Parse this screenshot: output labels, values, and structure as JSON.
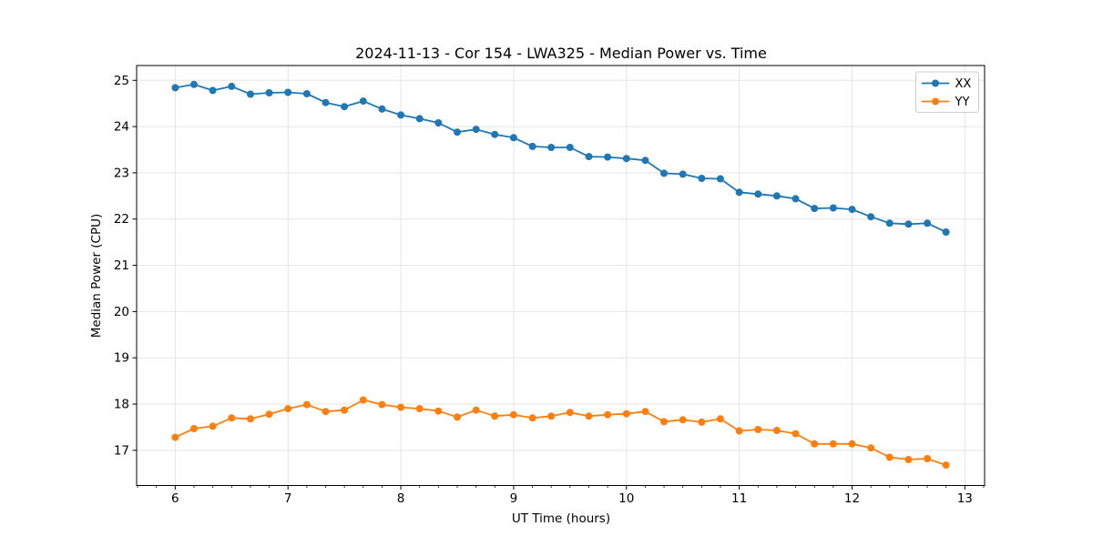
{
  "chart_data": {
    "type": "line",
    "title": "2024-11-13 - Cor 154 - LWA325 - Median Power vs. Time",
    "xlabel": "UT Time (hours)",
    "ylabel": "Median Power (CPU)",
    "xlim": [
      5.658,
      13.175
    ],
    "ylim": [
      16.24,
      25.32
    ],
    "xticks": [
      6,
      7,
      8,
      9,
      10,
      11,
      12,
      13
    ],
    "yticks": [
      17,
      18,
      19,
      20,
      21,
      22,
      23,
      24,
      25
    ],
    "x_minor_divisions": 6,
    "grid": true,
    "legend_position": "upper right",
    "marker": "o",
    "x": [
      6.0,
      6.167,
      6.333,
      6.5,
      6.667,
      6.833,
      7.0,
      7.167,
      7.333,
      7.5,
      7.667,
      7.833,
      8.0,
      8.167,
      8.333,
      8.5,
      8.667,
      8.833,
      9.0,
      9.167,
      9.333,
      9.5,
      9.667,
      9.833,
      10.0,
      10.167,
      10.333,
      10.5,
      10.667,
      10.833,
      11.0,
      11.167,
      11.333,
      11.5,
      11.667,
      11.833,
      12.0,
      12.167,
      12.333,
      12.5,
      12.667,
      12.833
    ],
    "series": [
      {
        "name": "XX",
        "color": "#1f77b4",
        "values": [
          24.84,
          24.91,
          24.78,
          24.87,
          24.7,
          24.73,
          24.74,
          24.71,
          24.52,
          24.43,
          24.55,
          24.38,
          24.25,
          24.17,
          24.08,
          23.88,
          23.94,
          23.83,
          23.76,
          23.57,
          23.55,
          23.55,
          23.35,
          23.34,
          23.31,
          23.27,
          22.99,
          22.97,
          22.88,
          22.87,
          22.58,
          22.54,
          22.5,
          22.44,
          22.23,
          22.24,
          22.21,
          22.05,
          21.91,
          21.89,
          21.91,
          21.72
        ]
      },
      {
        "name": "YY",
        "color": "#ff7f0e",
        "values": [
          17.28,
          17.47,
          17.52,
          17.7,
          17.68,
          17.78,
          17.9,
          17.99,
          17.84,
          17.87,
          18.09,
          17.99,
          17.93,
          17.9,
          17.85,
          17.72,
          17.87,
          17.74,
          17.77,
          17.7,
          17.74,
          17.82,
          17.74,
          17.77,
          17.79,
          17.84,
          17.62,
          17.66,
          17.61,
          17.68,
          17.42,
          17.45,
          17.43,
          17.36,
          17.14,
          17.14,
          17.14,
          17.05,
          16.85,
          16.8,
          16.82,
          16.68
        ]
      }
    ],
    "style": {
      "grid_color": "#e5e5e5",
      "spine_color": "#000000",
      "legend_border_color": "#cccccc",
      "background": "#ffffff"
    }
  }
}
